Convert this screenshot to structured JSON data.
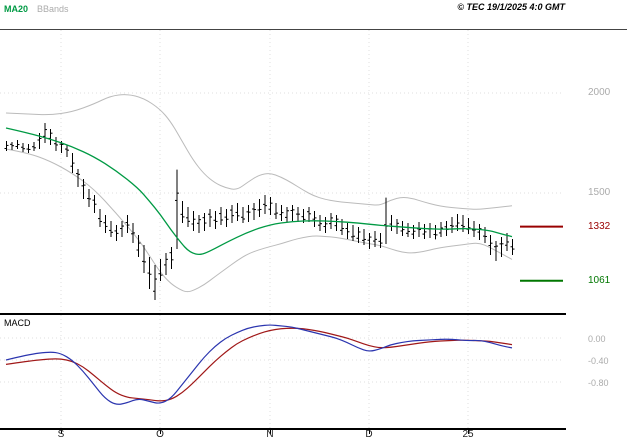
{
  "header": {
    "ma20_label": "MA20",
    "bbands_label": "BBands",
    "copyright": "© TEC 19/1/2025 4:0 GMT"
  },
  "macd_panel": {
    "label": "MACD"
  },
  "colors": {
    "ma20": "#009A44",
    "bbands": "#BBBBBB",
    "bars": "#000000",
    "grid": "#DFDFDF",
    "axis_text": "#ABABAB",
    "month_text": "#222222",
    "level_resistance": "#990000",
    "level_support": "#007700",
    "macd_fast": "#2B35AF",
    "macd_slow": "#A01818"
  },
  "chart_data": {
    "type": "ohlc-bars+lines",
    "title": "",
    "legend": [
      "MA20",
      "BBands"
    ],
    "x_axis": {
      "month_ticks": [
        {
          "index": 10,
          "label": "S"
        },
        {
          "index": 28,
          "label": "O"
        },
        {
          "index": 48,
          "label": "N"
        },
        {
          "index": 66,
          "label": "D"
        },
        {
          "index": 84,
          "label": "25"
        }
      ]
    },
    "price_panel": {
      "y_range_visible": [
        905,
        2290
      ],
      "y_ticks": [
        {
          "label": "2000",
          "value": 2000
        },
        {
          "label": "1500",
          "value": 1500
        }
      ],
      "levels": [
        {
          "label": "1332",
          "value": 1332,
          "role": "resistance"
        },
        {
          "label": "1061",
          "value": 1061,
          "role": "support"
        }
      ],
      "bars_high_low": [
        [
          1760,
          1710
        ],
        [
          1755,
          1715
        ],
        [
          1765,
          1720
        ],
        [
          1750,
          1705
        ],
        [
          1745,
          1700
        ],
        [
          1755,
          1710
        ],
        [
          1800,
          1720
        ],
        [
          1850,
          1750
        ],
        [
          1820,
          1740
        ],
        [
          1780,
          1710
        ],
        [
          1760,
          1700
        ],
        [
          1740,
          1680
        ],
        [
          1700,
          1600
        ],
        [
          1620,
          1530
        ],
        [
          1570,
          1470
        ],
        [
          1520,
          1430
        ],
        [
          1490,
          1400
        ],
        [
          1420,
          1330
        ],
        [
          1390,
          1300
        ],
        [
          1360,
          1280
        ],
        [
          1340,
          1260
        ],
        [
          1360,
          1280
        ],
        [
          1390,
          1300
        ],
        [
          1350,
          1250
        ],
        [
          1290,
          1180
        ],
        [
          1240,
          1100
        ],
        [
          1180,
          1020
        ],
        [
          1140,
          965
        ],
        [
          1170,
          1060
        ],
        [
          1200,
          1090
        ],
        [
          1230,
          1120
        ],
        [
          1617,
          1220
        ],
        [
          1460,
          1350
        ],
        [
          1430,
          1330
        ],
        [
          1410,
          1310
        ],
        [
          1390,
          1300
        ],
        [
          1400,
          1310
        ],
        [
          1420,
          1330
        ],
        [
          1410,
          1320
        ],
        [
          1430,
          1340
        ],
        [
          1420,
          1330
        ],
        [
          1440,
          1350
        ],
        [
          1450,
          1360
        ],
        [
          1430,
          1350
        ],
        [
          1440,
          1355
        ],
        [
          1450,
          1365
        ],
        [
          1470,
          1380
        ],
        [
          1490,
          1395
        ],
        [
          1480,
          1390
        ],
        [
          1450,
          1370
        ],
        [
          1440,
          1360
        ],
        [
          1430,
          1355
        ],
        [
          1440,
          1360
        ],
        [
          1430,
          1355
        ],
        [
          1420,
          1350
        ],
        [
          1430,
          1355
        ],
        [
          1410,
          1330
        ],
        [
          1390,
          1310
        ],
        [
          1380,
          1300
        ],
        [
          1400,
          1320
        ],
        [
          1390,
          1310
        ],
        [
          1370,
          1290
        ],
        [
          1350,
          1270
        ],
        [
          1340,
          1260
        ],
        [
          1330,
          1250
        ],
        [
          1320,
          1240
        ],
        [
          1300,
          1220
        ],
        [
          1310,
          1230
        ],
        [
          1300,
          1225
        ],
        [
          1477,
          1245
        ],
        [
          1390,
          1310
        ],
        [
          1370,
          1295
        ],
        [
          1360,
          1285
        ],
        [
          1350,
          1280
        ],
        [
          1340,
          1270
        ],
        [
          1355,
          1280
        ],
        [
          1345,
          1270
        ],
        [
          1350,
          1275
        ],
        [
          1340,
          1268
        ],
        [
          1355,
          1280
        ],
        [
          1360,
          1285
        ],
        [
          1380,
          1300
        ],
        [
          1395,
          1310
        ],
        [
          1390,
          1305
        ],
        [
          1375,
          1295
        ],
        [
          1360,
          1280
        ],
        [
          1345,
          1265
        ],
        [
          1330,
          1250
        ],
        [
          1290,
          1190
        ],
        [
          1260,
          1160
        ],
        [
          1280,
          1180
        ],
        [
          1300,
          1210
        ],
        [
          1270,
          1190
        ]
      ],
      "ma20": [
        [
          0,
          1825
        ],
        [
          4,
          1800
        ],
        [
          8,
          1770
        ],
        [
          12,
          1732
        ],
        [
          16,
          1682
        ],
        [
          20,
          1612
        ],
        [
          24,
          1525
        ],
        [
          26,
          1462
        ],
        [
          28,
          1395
        ],
        [
          30,
          1315
        ],
        [
          32,
          1245
        ],
        [
          33,
          1215
        ],
        [
          34,
          1198
        ],
        [
          35,
          1192
        ],
        [
          36,
          1196
        ],
        [
          38,
          1222
        ],
        [
          40,
          1252
        ],
        [
          44,
          1305
        ],
        [
          48,
          1342
        ],
        [
          52,
          1358
        ],
        [
          56,
          1362
        ],
        [
          60,
          1358
        ],
        [
          64,
          1350
        ],
        [
          68,
          1338
        ],
        [
          72,
          1330
        ],
        [
          76,
          1322
        ],
        [
          80,
          1318
        ],
        [
          84,
          1324
        ],
        [
          88,
          1312
        ],
        [
          90,
          1296
        ],
        [
          92,
          1282
        ]
      ],
      "bb_upper": [
        [
          0,
          1900
        ],
        [
          4,
          1895
        ],
        [
          8,
          1890
        ],
        [
          12,
          1905
        ],
        [
          16,
          1945
        ],
        [
          19,
          1985
        ],
        [
          22,
          1995
        ],
        [
          25,
          1975
        ],
        [
          28,
          1920
        ],
        [
          30,
          1855
        ],
        [
          32,
          1760
        ],
        [
          34,
          1665
        ],
        [
          36,
          1595
        ],
        [
          38,
          1550
        ],
        [
          40,
          1525
        ],
        [
          42,
          1515
        ],
        [
          44,
          1555
        ],
        [
          46,
          1590
        ],
        [
          48,
          1600
        ],
        [
          50,
          1580
        ],
        [
          52,
          1550
        ],
        [
          54,
          1515
        ],
        [
          56,
          1485
        ],
        [
          58,
          1468
        ],
        [
          60,
          1458
        ],
        [
          62,
          1452
        ],
        [
          64,
          1448
        ],
        [
          66,
          1442
        ],
        [
          68,
          1438
        ],
        [
          70,
          1465
        ],
        [
          72,
          1480
        ],
        [
          74,
          1472
        ],
        [
          76,
          1455
        ],
        [
          78,
          1440
        ],
        [
          80,
          1430
        ],
        [
          82,
          1425
        ],
        [
          84,
          1420
        ],
        [
          86,
          1418
        ],
        [
          88,
          1424
        ],
        [
          90,
          1430
        ],
        [
          92,
          1436
        ]
      ],
      "bb_lower": [
        [
          0,
          1720
        ],
        [
          4,
          1700
        ],
        [
          8,
          1660
        ],
        [
          12,
          1600
        ],
        [
          16,
          1520
        ],
        [
          20,
          1400
        ],
        [
          24,
          1272
        ],
        [
          26,
          1190
        ],
        [
          28,
          1105
        ],
        [
          30,
          1045
        ],
        [
          32,
          1012
        ],
        [
          33,
          1005
        ],
        [
          34,
          1012
        ],
        [
          36,
          1040
        ],
        [
          38,
          1082
        ],
        [
          40,
          1122
        ],
        [
          42,
          1162
        ],
        [
          44,
          1196
        ],
        [
          46,
          1216
        ],
        [
          48,
          1232
        ],
        [
          50,
          1246
        ],
        [
          52,
          1264
        ],
        [
          54,
          1278
        ],
        [
          56,
          1286
        ],
        [
          58,
          1283
        ],
        [
          60,
          1278
        ],
        [
          62,
          1268
        ],
        [
          64,
          1257
        ],
        [
          66,
          1247
        ],
        [
          68,
          1238
        ],
        [
          70,
          1220
        ],
        [
          72,
          1204
        ],
        [
          74,
          1199
        ],
        [
          76,
          1208
        ],
        [
          78,
          1221
        ],
        [
          80,
          1231
        ],
        [
          82,
          1238
        ],
        [
          84,
          1245
        ],
        [
          86,
          1251
        ],
        [
          88,
          1228
        ],
        [
          90,
          1198
        ],
        [
          92,
          1168
        ]
      ]
    },
    "macd": {
      "y_ticks": [
        {
          "label": "0.00",
          "value": 0
        },
        {
          "label": "-0.40",
          "value": -0.4
        },
        {
          "label": "-0.80",
          "value": -0.8
        }
      ],
      "fast": [
        [
          0,
          -0.4
        ],
        [
          4,
          -0.3
        ],
        [
          8,
          -0.25
        ],
        [
          10,
          -0.28
        ],
        [
          12,
          -0.4
        ],
        [
          14,
          -0.6
        ],
        [
          16,
          -0.85
        ],
        [
          18,
          -1.1
        ],
        [
          20,
          -1.22
        ],
        [
          22,
          -1.18
        ],
        [
          24,
          -1.1
        ],
        [
          26,
          -1.15
        ],
        [
          28,
          -1.2
        ],
        [
          30,
          -1.1
        ],
        [
          32,
          -0.85
        ],
        [
          34,
          -0.6
        ],
        [
          36,
          -0.35
        ],
        [
          38,
          -0.15
        ],
        [
          40,
          0.0
        ],
        [
          42,
          0.1
        ],
        [
          44,
          0.18
        ],
        [
          46,
          0.22
        ],
        [
          48,
          0.24
        ],
        [
          50,
          0.22
        ],
        [
          52,
          0.2
        ],
        [
          54,
          0.15
        ],
        [
          56,
          0.1
        ],
        [
          58,
          0.05
        ],
        [
          60,
          0.0
        ],
        [
          62,
          -0.08
        ],
        [
          64,
          -0.18
        ],
        [
          66,
          -0.25
        ],
        [
          68,
          -0.2
        ],
        [
          70,
          -0.12
        ],
        [
          72,
          -0.08
        ],
        [
          74,
          -0.05
        ],
        [
          76,
          -0.04
        ],
        [
          78,
          -0.03
        ],
        [
          80,
          -0.02
        ],
        [
          82,
          -0.03
        ],
        [
          84,
          -0.05
        ],
        [
          86,
          -0.04
        ],
        [
          88,
          -0.08
        ],
        [
          90,
          -0.14
        ],
        [
          92,
          -0.18
        ]
      ],
      "slow": [
        [
          0,
          -0.48
        ],
        [
          4,
          -0.42
        ],
        [
          8,
          -0.38
        ],
        [
          10,
          -0.38
        ],
        [
          12,
          -0.42
        ],
        [
          14,
          -0.52
        ],
        [
          16,
          -0.68
        ],
        [
          18,
          -0.85
        ],
        [
          20,
          -1.0
        ],
        [
          22,
          -1.08
        ],
        [
          24,
          -1.1
        ],
        [
          26,
          -1.12
        ],
        [
          28,
          -1.15
        ],
        [
          30,
          -1.12
        ],
        [
          32,
          -1.0
        ],
        [
          34,
          -0.82
        ],
        [
          36,
          -0.62
        ],
        [
          38,
          -0.42
        ],
        [
          40,
          -0.25
        ],
        [
          42,
          -0.1
        ],
        [
          44,
          0.0
        ],
        [
          46,
          0.08
        ],
        [
          48,
          0.14
        ],
        [
          50,
          0.17
        ],
        [
          52,
          0.18
        ],
        [
          54,
          0.17
        ],
        [
          56,
          0.14
        ],
        [
          58,
          0.1
        ],
        [
          60,
          0.05
        ],
        [
          62,
          0.0
        ],
        [
          64,
          -0.07
        ],
        [
          66,
          -0.14
        ],
        [
          68,
          -0.18
        ],
        [
          70,
          -0.17
        ],
        [
          72,
          -0.14
        ],
        [
          74,
          -0.11
        ],
        [
          76,
          -0.08
        ],
        [
          78,
          -0.06
        ],
        [
          80,
          -0.05
        ],
        [
          82,
          -0.04
        ],
        [
          84,
          -0.04
        ],
        [
          86,
          -0.05
        ],
        [
          88,
          -0.06
        ],
        [
          90,
          -0.09
        ],
        [
          92,
          -0.12
        ]
      ]
    }
  }
}
